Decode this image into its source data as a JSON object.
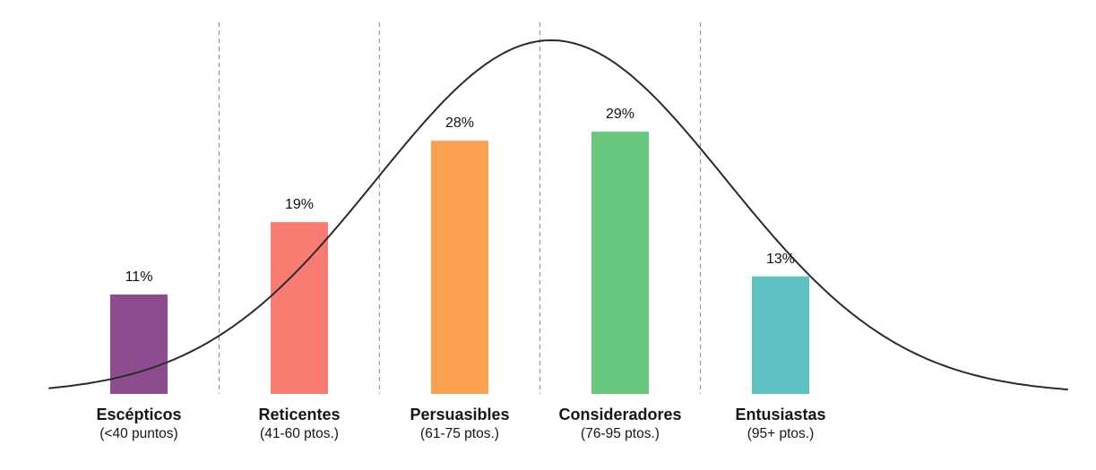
{
  "page": {
    "background": "#ffffff"
  },
  "chart_data": {
    "type": "bar",
    "title": "",
    "xlabel": "",
    "ylabel": "",
    "legend": "none",
    "categories": [
      "Escépticos",
      "Reticentes",
      "Persuasibles",
      "Consideradores",
      "Entusiastas"
    ],
    "category_sublabels": [
      "(<40 puntos)",
      "(41-60 ptos.)",
      "(61-75 ptos.)",
      "(76-95 ptos.)",
      "(95+ ptos.)"
    ],
    "values": [
      11,
      19,
      28,
      29,
      13
    ],
    "value_labels": [
      "11%",
      "19%",
      "28%",
      "29%",
      "13%"
    ],
    "bar_colors": [
      "#8c4d8f",
      "#f97c72",
      "#f9a14e",
      "#68c87d",
      "#5ec1c2"
    ],
    "ylim": [
      0,
      40
    ],
    "grid": "dashed-vertical-separators",
    "gridline_color": "#999999",
    "overlay": "normal-distribution-curve",
    "curve_color": "#2b2b2b"
  }
}
